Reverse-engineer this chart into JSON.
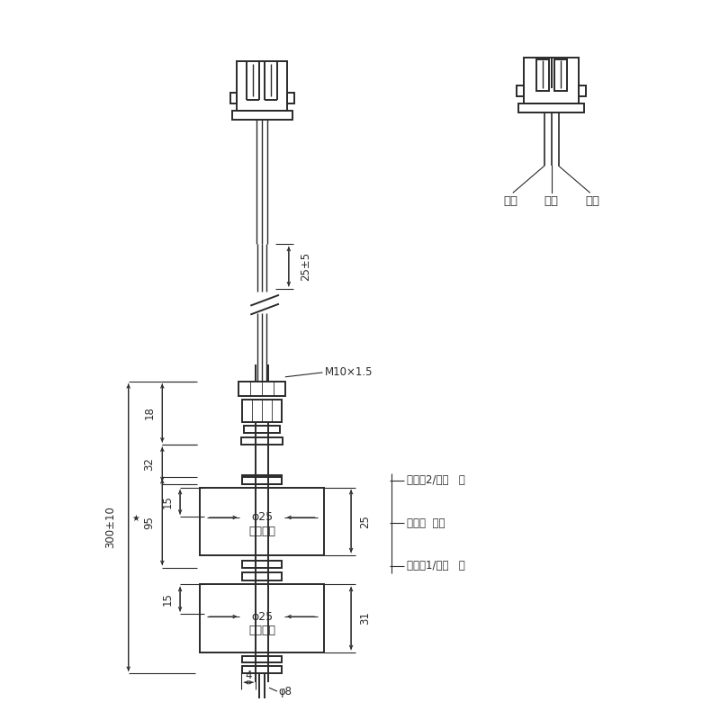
{
  "bg_color": "#ffffff",
  "lc": "#2a2a2a",
  "dc": "#2a2a2a",
  "tc": "#2a2a2a",
  "lw_main": 1.4,
  "lw_dim": 0.8,
  "labels": {
    "foam_ball": "发泡浮球",
    "phi25": "φ25",
    "phi8": "φ8",
    "M10": "M10×1.5",
    "dim_300": "300±10",
    "dim_25_5": "25±5",
    "dim_18": "18",
    "dim_32": "32",
    "dim_95": "95",
    "dim_15": "15",
    "dim_25r": "25",
    "dim_31": "31",
    "dim_4": "4",
    "white_line": "白线",
    "black_line": "黑线",
    "red_line": "红线",
    "water2": "水位点2/上通   红",
    "common": "公共线  黑色",
    "water1": "水位点1/上通   白"
  }
}
